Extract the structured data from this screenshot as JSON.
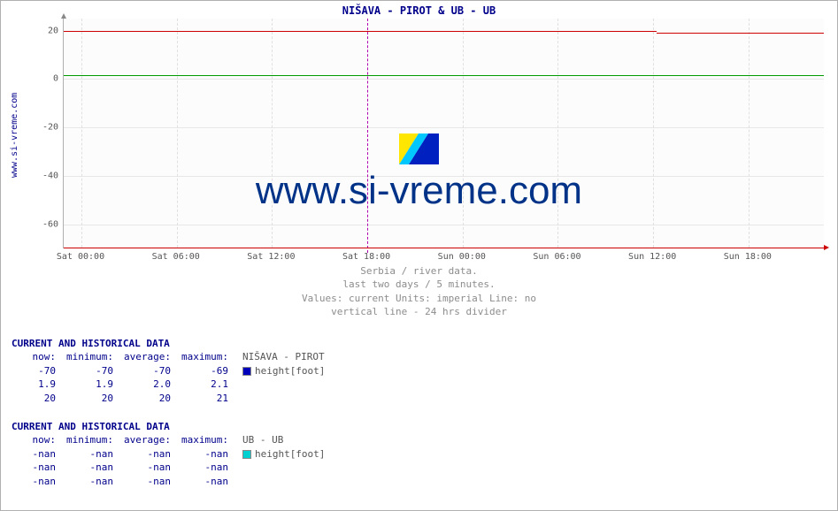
{
  "title": "NIŠAVA -  PIROT &  UB -  UB",
  "side_url": "www.si-vreme.com",
  "watermark": "www.si-vreme.com",
  "chart": {
    "type": "line",
    "ylim": [
      -70,
      25
    ],
    "yticks": [
      -60,
      -40,
      -20,
      0,
      20
    ],
    "xticks": [
      "Sat 00:00",
      "Sat 06:00",
      "Sat 12:00",
      "Sat 18:00",
      "Sun 00:00",
      "Sun 06:00",
      "Sun 12:00",
      "Sun 18:00"
    ],
    "divider_index": 3,
    "plot_bg": "#fcfcfc",
    "grid_color": "#e7e7e7",
    "series": [
      {
        "name": "red",
        "color": "#cc0000",
        "y_value": 20,
        "width": 1,
        "last_drop_to": 19.3
      },
      {
        "name": "green",
        "color": "#009900",
        "y_value": 1.5,
        "width": 1
      },
      {
        "name": "blue",
        "color": "#0000bb",
        "y_value": -69.5,
        "width": 1
      }
    ]
  },
  "subtitles": [
    "Serbia / river data.",
    "last two days / 5 minutes.",
    "Values: current  Units: imperial  Line: no",
    "vertical line - 24 hrs  divider"
  ],
  "blocks": [
    {
      "heading": "CURRENT AND HISTORICAL DATA",
      "columns": [
        "now:",
        "minimum:",
        "average:",
        "maximum:"
      ],
      "station": "NIŠAVA -  PIROT",
      "swatch": "#0000bb",
      "metric": "height[foot]",
      "rows": [
        [
          "-70",
          "-70",
          "-70",
          "-69"
        ],
        [
          "1.9",
          "1.9",
          "2.0",
          "2.1"
        ],
        [
          "20",
          "20",
          "20",
          "21"
        ]
      ]
    },
    {
      "heading": "CURRENT AND HISTORICAL DATA",
      "columns": [
        "now:",
        "minimum:",
        "average:",
        "maximum:"
      ],
      "station": "UB -  UB",
      "swatch": "#00d0d0",
      "metric": "height[foot]",
      "rows": [
        [
          "-nan",
          "-nan",
          "-nan",
          "-nan"
        ],
        [
          "-nan",
          "-nan",
          "-nan",
          "-nan"
        ],
        [
          "-nan",
          "-nan",
          "-nan",
          "-nan"
        ]
      ]
    }
  ]
}
